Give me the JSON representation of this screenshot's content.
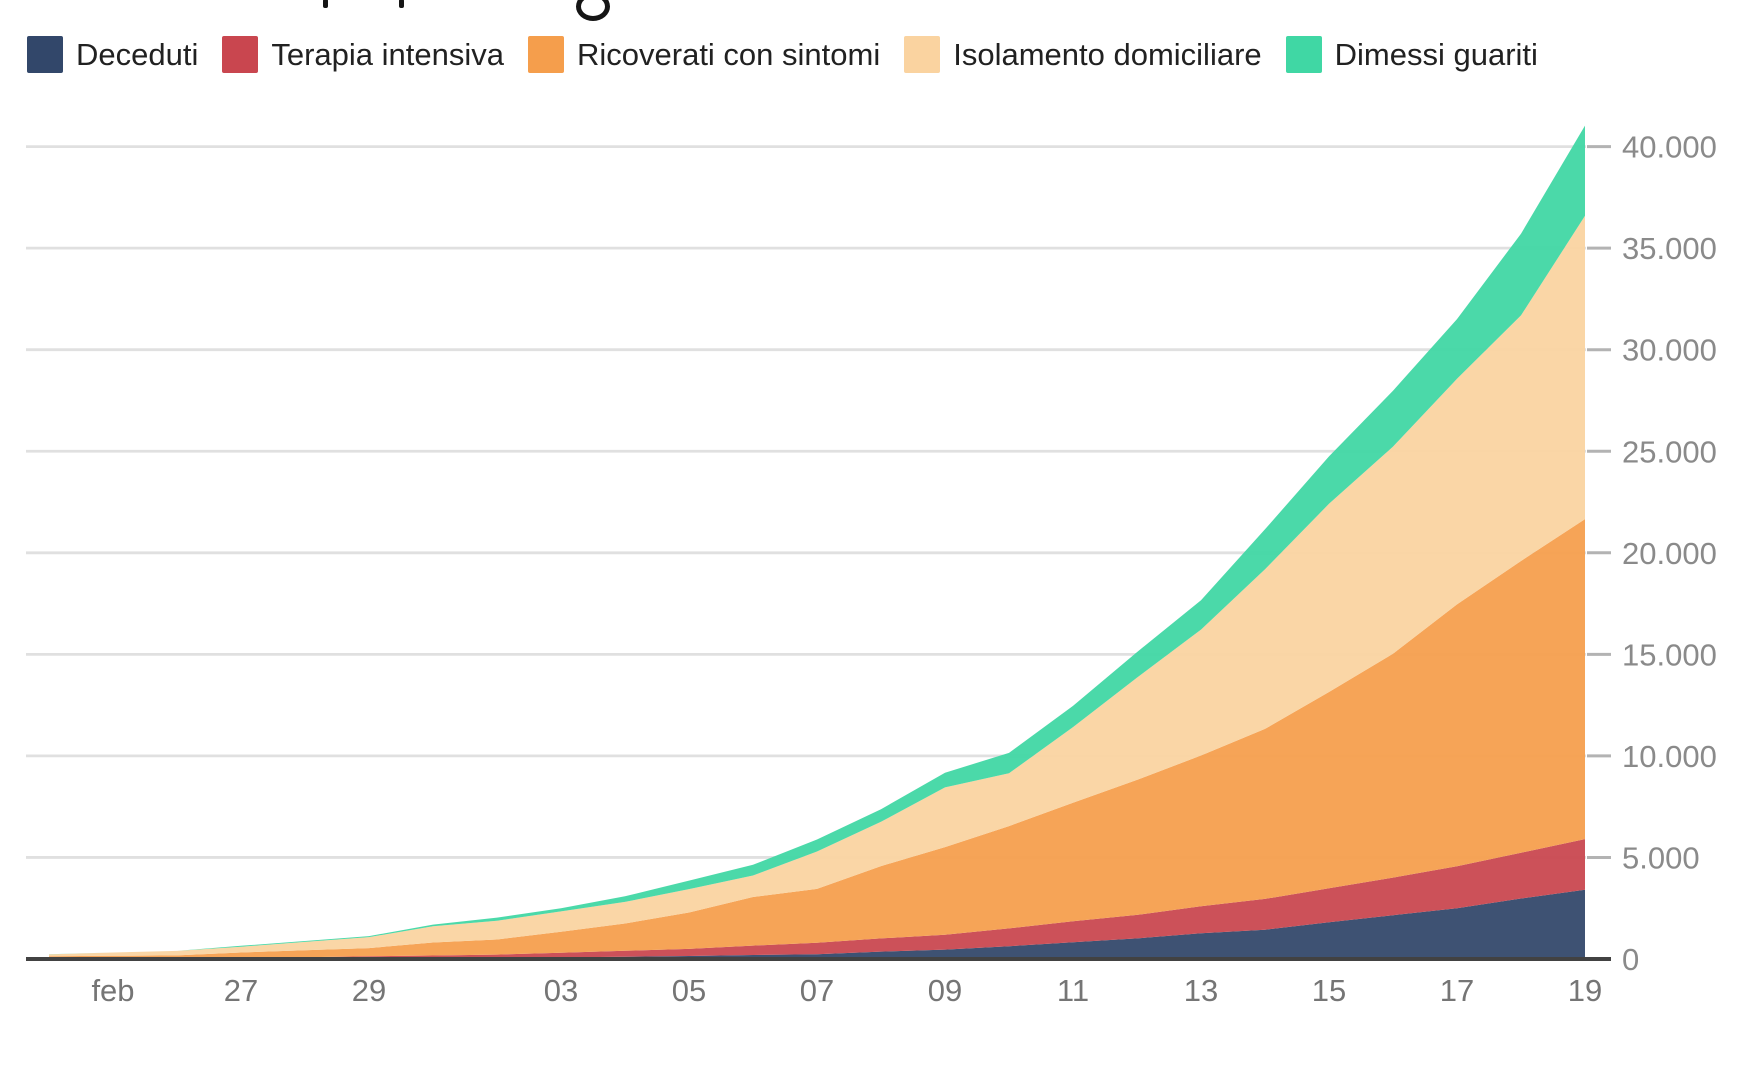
{
  "legend": {
    "items": [
      {
        "label": "Deceduti",
        "color": "#32476a"
      },
      {
        "label": "Terapia intensiva",
        "color": "#c9464f"
      },
      {
        "label": "Ricoverati con sintomi",
        "color": "#f59e4c"
      },
      {
        "label": "Isolamento domiciliare",
        "color": "#fad3a0"
      },
      {
        "label": "Dimessi guariti",
        "color": "#40d7a4"
      }
    ]
  },
  "chart_data": {
    "type": "area",
    "stacked": true,
    "grid": true,
    "legend_position": "top",
    "x": [
      "24 feb",
      "25 feb",
      "26 feb",
      "27 feb",
      "28 feb",
      "29 feb",
      "01 mar",
      "02 mar",
      "03 mar",
      "04 mar",
      "05 mar",
      "06 mar",
      "07 mar",
      "08 mar",
      "09 mar",
      "10 mar",
      "11 mar",
      "12 mar",
      "13 mar",
      "14 mar",
      "15 mar",
      "16 mar",
      "17 mar",
      "18 mar",
      "19 mar"
    ],
    "series": [
      {
        "name": "Deceduti",
        "color": "#32476a",
        "values": [
          7,
          10,
          12,
          17,
          21,
          29,
          34,
          52,
          79,
          107,
          148,
          197,
          233,
          366,
          463,
          631,
          827,
          1016,
          1266,
          1441,
          1809,
          2158,
          2503,
          2978,
          3405
        ]
      },
      {
        "name": "Terapia intensiva",
        "color": "#c9464f",
        "values": [
          26,
          35,
          36,
          56,
          64,
          105,
          140,
          166,
          229,
          295,
          351,
          462,
          567,
          650,
          733,
          877,
          1028,
          1153,
          1328,
          1518,
          1672,
          1851,
          2060,
          2257,
          2498
        ]
      },
      {
        "name": "Ricoverati con sintomi",
        "color": "#f59e4c",
        "values": [
          101,
          114,
          128,
          248,
          345,
          401,
          639,
          742,
          1034,
          1346,
          1790,
          2394,
          2651,
          3557,
          4316,
          5038,
          5838,
          6650,
          7426,
          8372,
          9663,
          11025,
          12894,
          14363,
          15757
        ]
      },
      {
        "name": "Isolamento domiciliare",
        "color": "#fad3a0",
        "values": [
          94,
          162,
          221,
          284,
          412,
          543,
          798,
          927,
          1000,
          1065,
          1155,
          1060,
          1843,
          2180,
          2936,
          2599,
          3724,
          5036,
          6201,
          7860,
          9268,
          10197,
          11108,
          12090,
          14935
        ]
      },
      {
        "name": "Dimessi guariti",
        "color": "#40d7a4",
        "values": [
          1,
          1,
          3,
          45,
          46,
          50,
          83,
          149,
          160,
          276,
          414,
          523,
          589,
          622,
          724,
          1004,
          1045,
          1258,
          1439,
          1966,
          2335,
          2749,
          2941,
          4025,
          4440
        ]
      }
    ],
    "x_axis": {
      "ticks": [
        {
          "label": "feb",
          "index": 1
        },
        {
          "label": "27",
          "index": 3
        },
        {
          "label": "29",
          "index": 5
        },
        {
          "label": "03",
          "index": 8
        },
        {
          "label": "05",
          "index": 10
        },
        {
          "label": "07",
          "index": 12
        },
        {
          "label": "09",
          "index": 14
        },
        {
          "label": "11",
          "index": 16
        },
        {
          "label": "13",
          "index": 18
        },
        {
          "label": "15",
          "index": 20
        },
        {
          "label": "17",
          "index": 22
        },
        {
          "label": "19",
          "index": 24
        }
      ]
    },
    "y_axis": {
      "side": "right",
      "tick_values": [
        0,
        5000,
        10000,
        15000,
        20000,
        25000,
        30000,
        35000,
        40000
      ],
      "tick_labels": [
        "0",
        "5.000",
        "10.000",
        "15.000",
        "20.000",
        "25.000",
        "30.000",
        "35.000",
        "40.000"
      ]
    },
    "ylim": [
      0,
      40000
    ]
  }
}
